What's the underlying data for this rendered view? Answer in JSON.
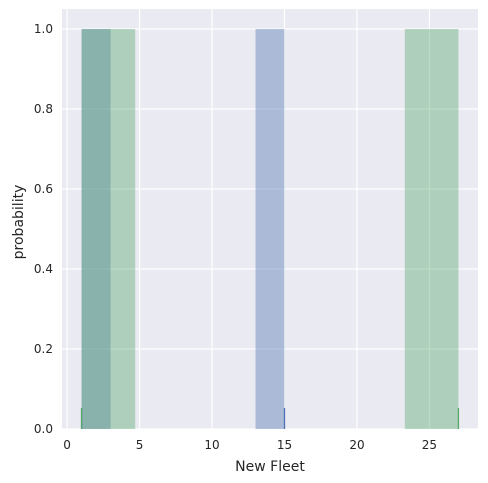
{
  "chart_data": {
    "type": "bar",
    "title": "",
    "xlabel": "New Fleet",
    "ylabel": "probability",
    "xlim": [
      -0.35,
      28.35
    ],
    "ylim": [
      0,
      1.05
    ],
    "grid": true,
    "xticks": [
      0,
      5,
      10,
      15,
      20,
      25
    ],
    "yticks": [
      0.0,
      0.2,
      0.4,
      0.6,
      0.8,
      1.0
    ],
    "xtick_labels": [
      "0",
      "5",
      "10",
      "15",
      "20",
      "25"
    ],
    "ytick_labels": [
      "0.0",
      "0.2",
      "0.4",
      "0.6",
      "0.8",
      "1.0"
    ],
    "series": [
      {
        "name": "blue",
        "color": "#4c72b0",
        "opacity": 0.4,
        "bars": [
          {
            "x0": 1.0,
            "x1": 3.0,
            "value": 1.0
          },
          {
            "x0": 13.0,
            "x1": 15.0,
            "value": 1.0
          }
        ],
        "rug": [
          1.0,
          15.0
        ]
      },
      {
        "name": "green",
        "color": "#55a868",
        "opacity": 0.4,
        "bars": [
          {
            "x0": 1.0,
            "x1": 4.7,
            "value": 1.0
          },
          {
            "x0": 23.3,
            "x1": 27.0,
            "value": 1.0
          }
        ],
        "rug": [
          1.0,
          27.0
        ]
      }
    ]
  }
}
